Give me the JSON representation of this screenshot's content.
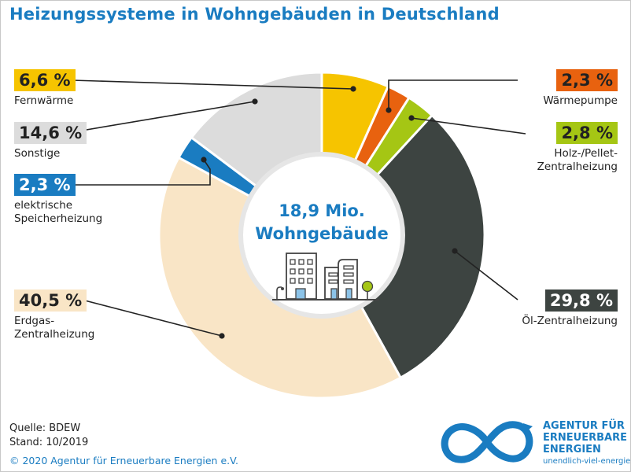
{
  "title": "Heizungssysteme in Wohngebäuden in Deutschland",
  "center": {
    "line1": "18,9 Mio.",
    "line2": "Wohngebäude"
  },
  "footer": {
    "source": "Quelle: BDEW",
    "date": "Stand: 10/2019",
    "copyright": "© 2020 Agentur für Erneuerbare Energien e.V."
  },
  "logo": {
    "line1": "AGENTUR FÜR",
    "line2": "ERNEUERBARE",
    "line3": "ENERGIEN",
    "url": "unendlich-viel-energie.de"
  },
  "chart_data": {
    "type": "pie",
    "title": "Heizungssysteme in Wohngebäuden in Deutschland",
    "donut": true,
    "start": "top, clockwise",
    "slices": [
      {
        "label": "Fernwärme",
        "value": 6.6,
        "value_label": "6,6 %",
        "color": "#f6c400"
      },
      {
        "label": "Wärmepumpe",
        "value": 2.3,
        "value_label": "2,3 %",
        "color": "#e8620f"
      },
      {
        "label": "Holz-/Pellet-Zentralheizung",
        "value": 2.8,
        "value_label": "2,8 %",
        "color": "#a5c614"
      },
      {
        "label": "Öl-Zentralheizung",
        "value": 29.8,
        "value_label": "29,8 %",
        "color": "#3d4441"
      },
      {
        "label": "Erdgas-Zentralheizung",
        "value": 40.5,
        "value_label": "40,5 %",
        "color": "#f9e5c6"
      },
      {
        "label": "elektrische Speicherheizung",
        "value": 2.3,
        "value_label": "2,3 %",
        "color": "#1a7cc1"
      },
      {
        "label": "Sonstige",
        "value": 14.6,
        "value_label": "14,6 %",
        "color": "#dcdcdc"
      }
    ]
  }
}
